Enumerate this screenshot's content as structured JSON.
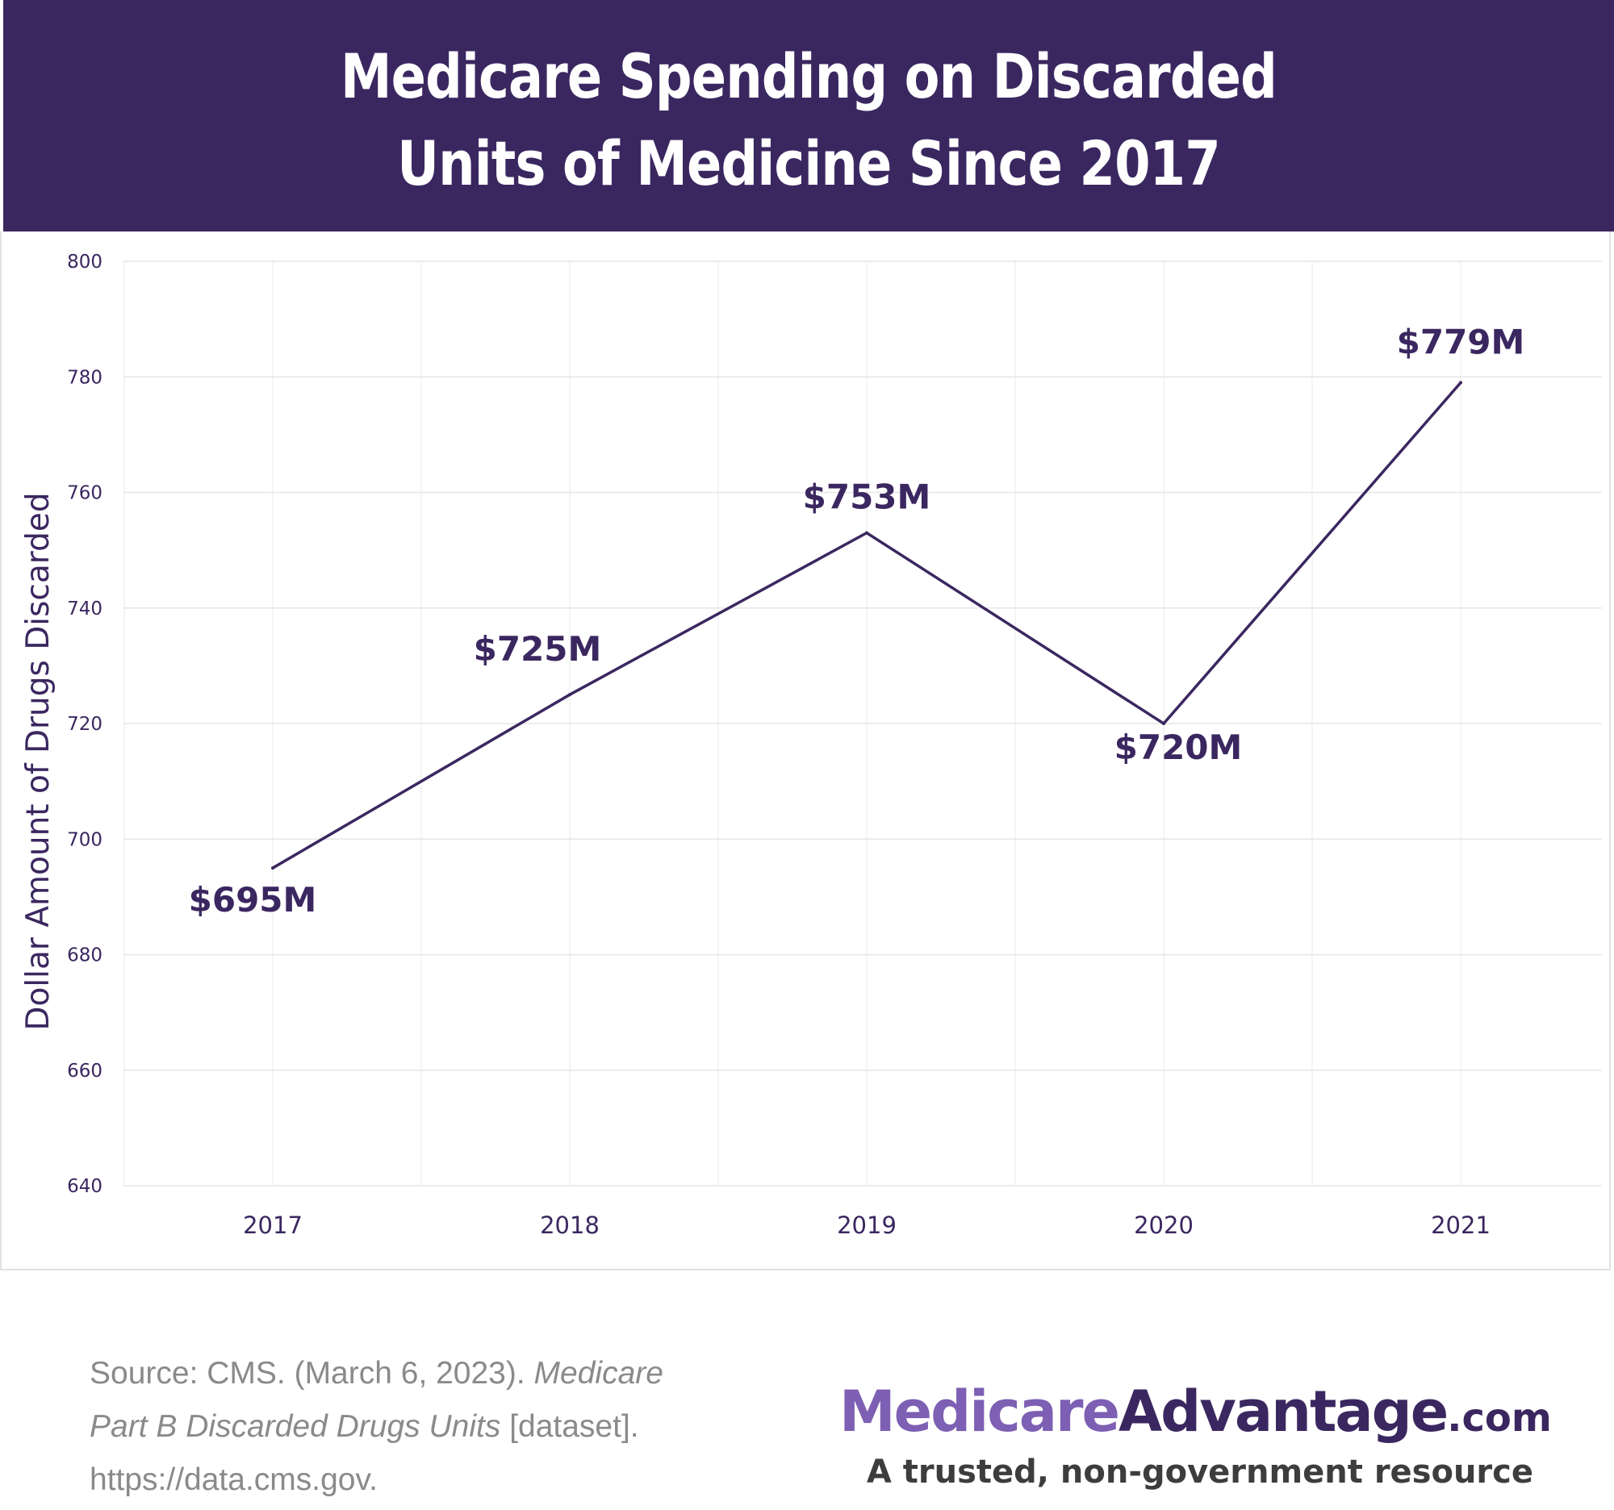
{
  "header": {
    "title_line1": "Medicare Spending on Discarded",
    "title_line2": "Units of Medicine Since 2017"
  },
  "colors": {
    "header_bg": "#3b2760",
    "line": "#3b2760",
    "axis_text": "#3b2760",
    "grid": "#e6e6e6",
    "brand_light": "#7d5fb3",
    "brand_dark": "#3b2760"
  },
  "chart_data": {
    "type": "line",
    "title": "Medicare Spending on Discarded Units of Medicine Since 2017",
    "xlabel": "",
    "ylabel": "Dollar Amount of Drugs Discarded",
    "categories": [
      "2017",
      "2018",
      "2019",
      "2020",
      "2021"
    ],
    "values": [
      695,
      725,
      753,
      720,
      779
    ],
    "data_labels": [
      "$695M",
      "$725M",
      "$753M",
      "$720M",
      "$779M"
    ],
    "ylim": [
      640,
      800
    ],
    "yticks": [
      640,
      660,
      680,
      700,
      720,
      740,
      760,
      780,
      800
    ],
    "grid": true,
    "legend": "none"
  },
  "footer": {
    "source_prefix": "Source: CMS. (March 6, 2023).",
    "source_title": "Medicare Part B Discarded Drugs Units",
    "source_suffix": "[dataset]. https://data.cms.gov.",
    "brand_part1": "Medicare",
    "brand_part2": "Advantage",
    "brand_part3": ".com",
    "tagline": "A trusted, non-government resource"
  }
}
